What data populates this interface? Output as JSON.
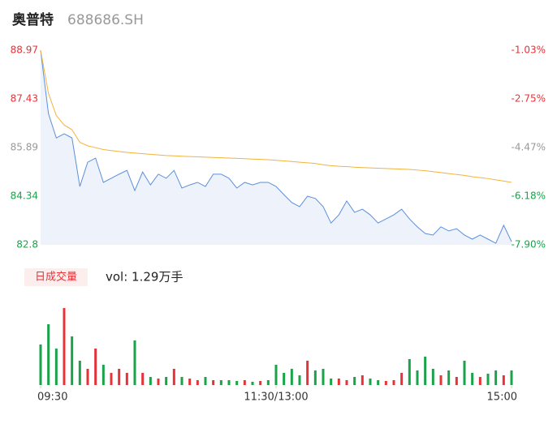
{
  "header": {
    "name": "奥普特",
    "code": "688686.SH"
  },
  "chart_data": [
    {
      "type": "line",
      "x": [
        0,
        4,
        8,
        12,
        16,
        20,
        24,
        28,
        32,
        36,
        40,
        44,
        48,
        52,
        56,
        60,
        64,
        68,
        72,
        76,
        80,
        84,
        88,
        92,
        96,
        100,
        104,
        108,
        112,
        116,
        120,
        124,
        128,
        132,
        136,
        140,
        144,
        148,
        152,
        156,
        160,
        164,
        168,
        172,
        176,
        180,
        184,
        188,
        192,
        196,
        200,
        204,
        208,
        212,
        216,
        220,
        224,
        228,
        232,
        236,
        240
      ],
      "xlim": [
        0,
        240
      ],
      "xticks": [
        {
          "value": 0,
          "label": "09:30"
        },
        {
          "value": 120,
          "label": "11:30/13:00"
        },
        {
          "value": 240,
          "label": "15:00"
        }
      ],
      "ylim": [
        82.8,
        88.97
      ],
      "yticks": [
        88.97,
        87.43,
        85.89,
        84.34,
        82.8
      ],
      "y2lim": [
        -7.9,
        -1.03
      ],
      "y2ticks": [
        {
          "value": -1.03,
          "label": "-1.03%"
        },
        {
          "value": -2.75,
          "label": "-2.75%"
        },
        {
          "value": -4.47,
          "label": "-4.47%"
        },
        {
          "value": -6.18,
          "label": "-6.18%"
        },
        {
          "value": -7.9,
          "label": "-7.90%"
        }
      ],
      "tick_colors": [
        "#e5333a",
        "#e5333a",
        "#999999",
        "#1aa34a",
        "#1aa34a"
      ],
      "series": [
        {
          "name": "price",
          "color": "#5b8fdc",
          "fill": "#eef3fb",
          "values": [
            88.97,
            86.96,
            86.19,
            86.32,
            86.19,
            84.65,
            85.42,
            85.55,
            84.78,
            84.91,
            85.04,
            85.16,
            84.52,
            85.11,
            84.7,
            85.04,
            84.91,
            85.16,
            84.6,
            84.7,
            84.78,
            84.65,
            85.04,
            85.04,
            84.91,
            84.6,
            84.78,
            84.7,
            84.78,
            84.78,
            84.65,
            84.39,
            84.14,
            84.01,
            84.34,
            84.27,
            84.01,
            83.49,
            83.75,
            84.19,
            83.83,
            83.93,
            83.75,
            83.49,
            83.62,
            83.75,
            83.93,
            83.62,
            83.37,
            83.16,
            83.11,
            83.37,
            83.24,
            83.31,
            83.11,
            82.98,
            83.11,
            82.98,
            82.85,
            83.42,
            82.9
          ]
        },
        {
          "name": "average",
          "color": "#f2b33d",
          "values": [
            88.97,
            87.6,
            86.9,
            86.6,
            86.45,
            86.05,
            85.94,
            85.88,
            85.82,
            85.79,
            85.76,
            85.73,
            85.71,
            85.69,
            85.67,
            85.65,
            85.63,
            85.62,
            85.61,
            85.6,
            85.59,
            85.58,
            85.57,
            85.56,
            85.55,
            85.54,
            85.53,
            85.52,
            85.51,
            85.5,
            85.48,
            85.46,
            85.44,
            85.42,
            85.4,
            85.38,
            85.34,
            85.31,
            85.29,
            85.28,
            85.26,
            85.25,
            85.24,
            85.23,
            85.22,
            85.21,
            85.2,
            85.19,
            85.17,
            85.15,
            85.12,
            85.09,
            85.06,
            85.03,
            85.0,
            84.96,
            84.93,
            84.9,
            84.86,
            84.82,
            84.78
          ]
        }
      ]
    },
    {
      "type": "bar",
      "badge": "日成交量",
      "label": "vol: 1.29万手",
      "x": [
        0,
        4,
        8,
        12,
        16,
        20,
        24,
        28,
        32,
        36,
        40,
        44,
        48,
        52,
        56,
        60,
        64,
        68,
        72,
        76,
        80,
        84,
        88,
        92,
        96,
        100,
        104,
        108,
        112,
        116,
        120,
        124,
        128,
        132,
        136,
        140,
        144,
        148,
        152,
        156,
        160,
        164,
        168,
        172,
        176,
        180,
        184,
        188,
        192,
        196,
        200,
        204,
        208,
        212,
        216,
        220,
        224,
        228,
        232,
        236,
        240
      ],
      "xlim": [
        0,
        240
      ],
      "ylim": [
        0,
        1000
      ],
      "up_color": "#e5333a",
      "down_color": "#1aa34a",
      "values": [
        500,
        750,
        450,
        950,
        600,
        300,
        200,
        450,
        250,
        150,
        200,
        150,
        550,
        150,
        100,
        80,
        100,
        200,
        100,
        80,
        60,
        100,
        60,
        60,
        60,
        50,
        60,
        40,
        50,
        60,
        250,
        150,
        200,
        120,
        300,
        180,
        200,
        80,
        80,
        60,
        100,
        120,
        80,
        60,
        50,
        60,
        150,
        320,
        180,
        350,
        200,
        120,
        180,
        100,
        300,
        150,
        100,
        140,
        180,
        120,
        180
      ]
    }
  ]
}
